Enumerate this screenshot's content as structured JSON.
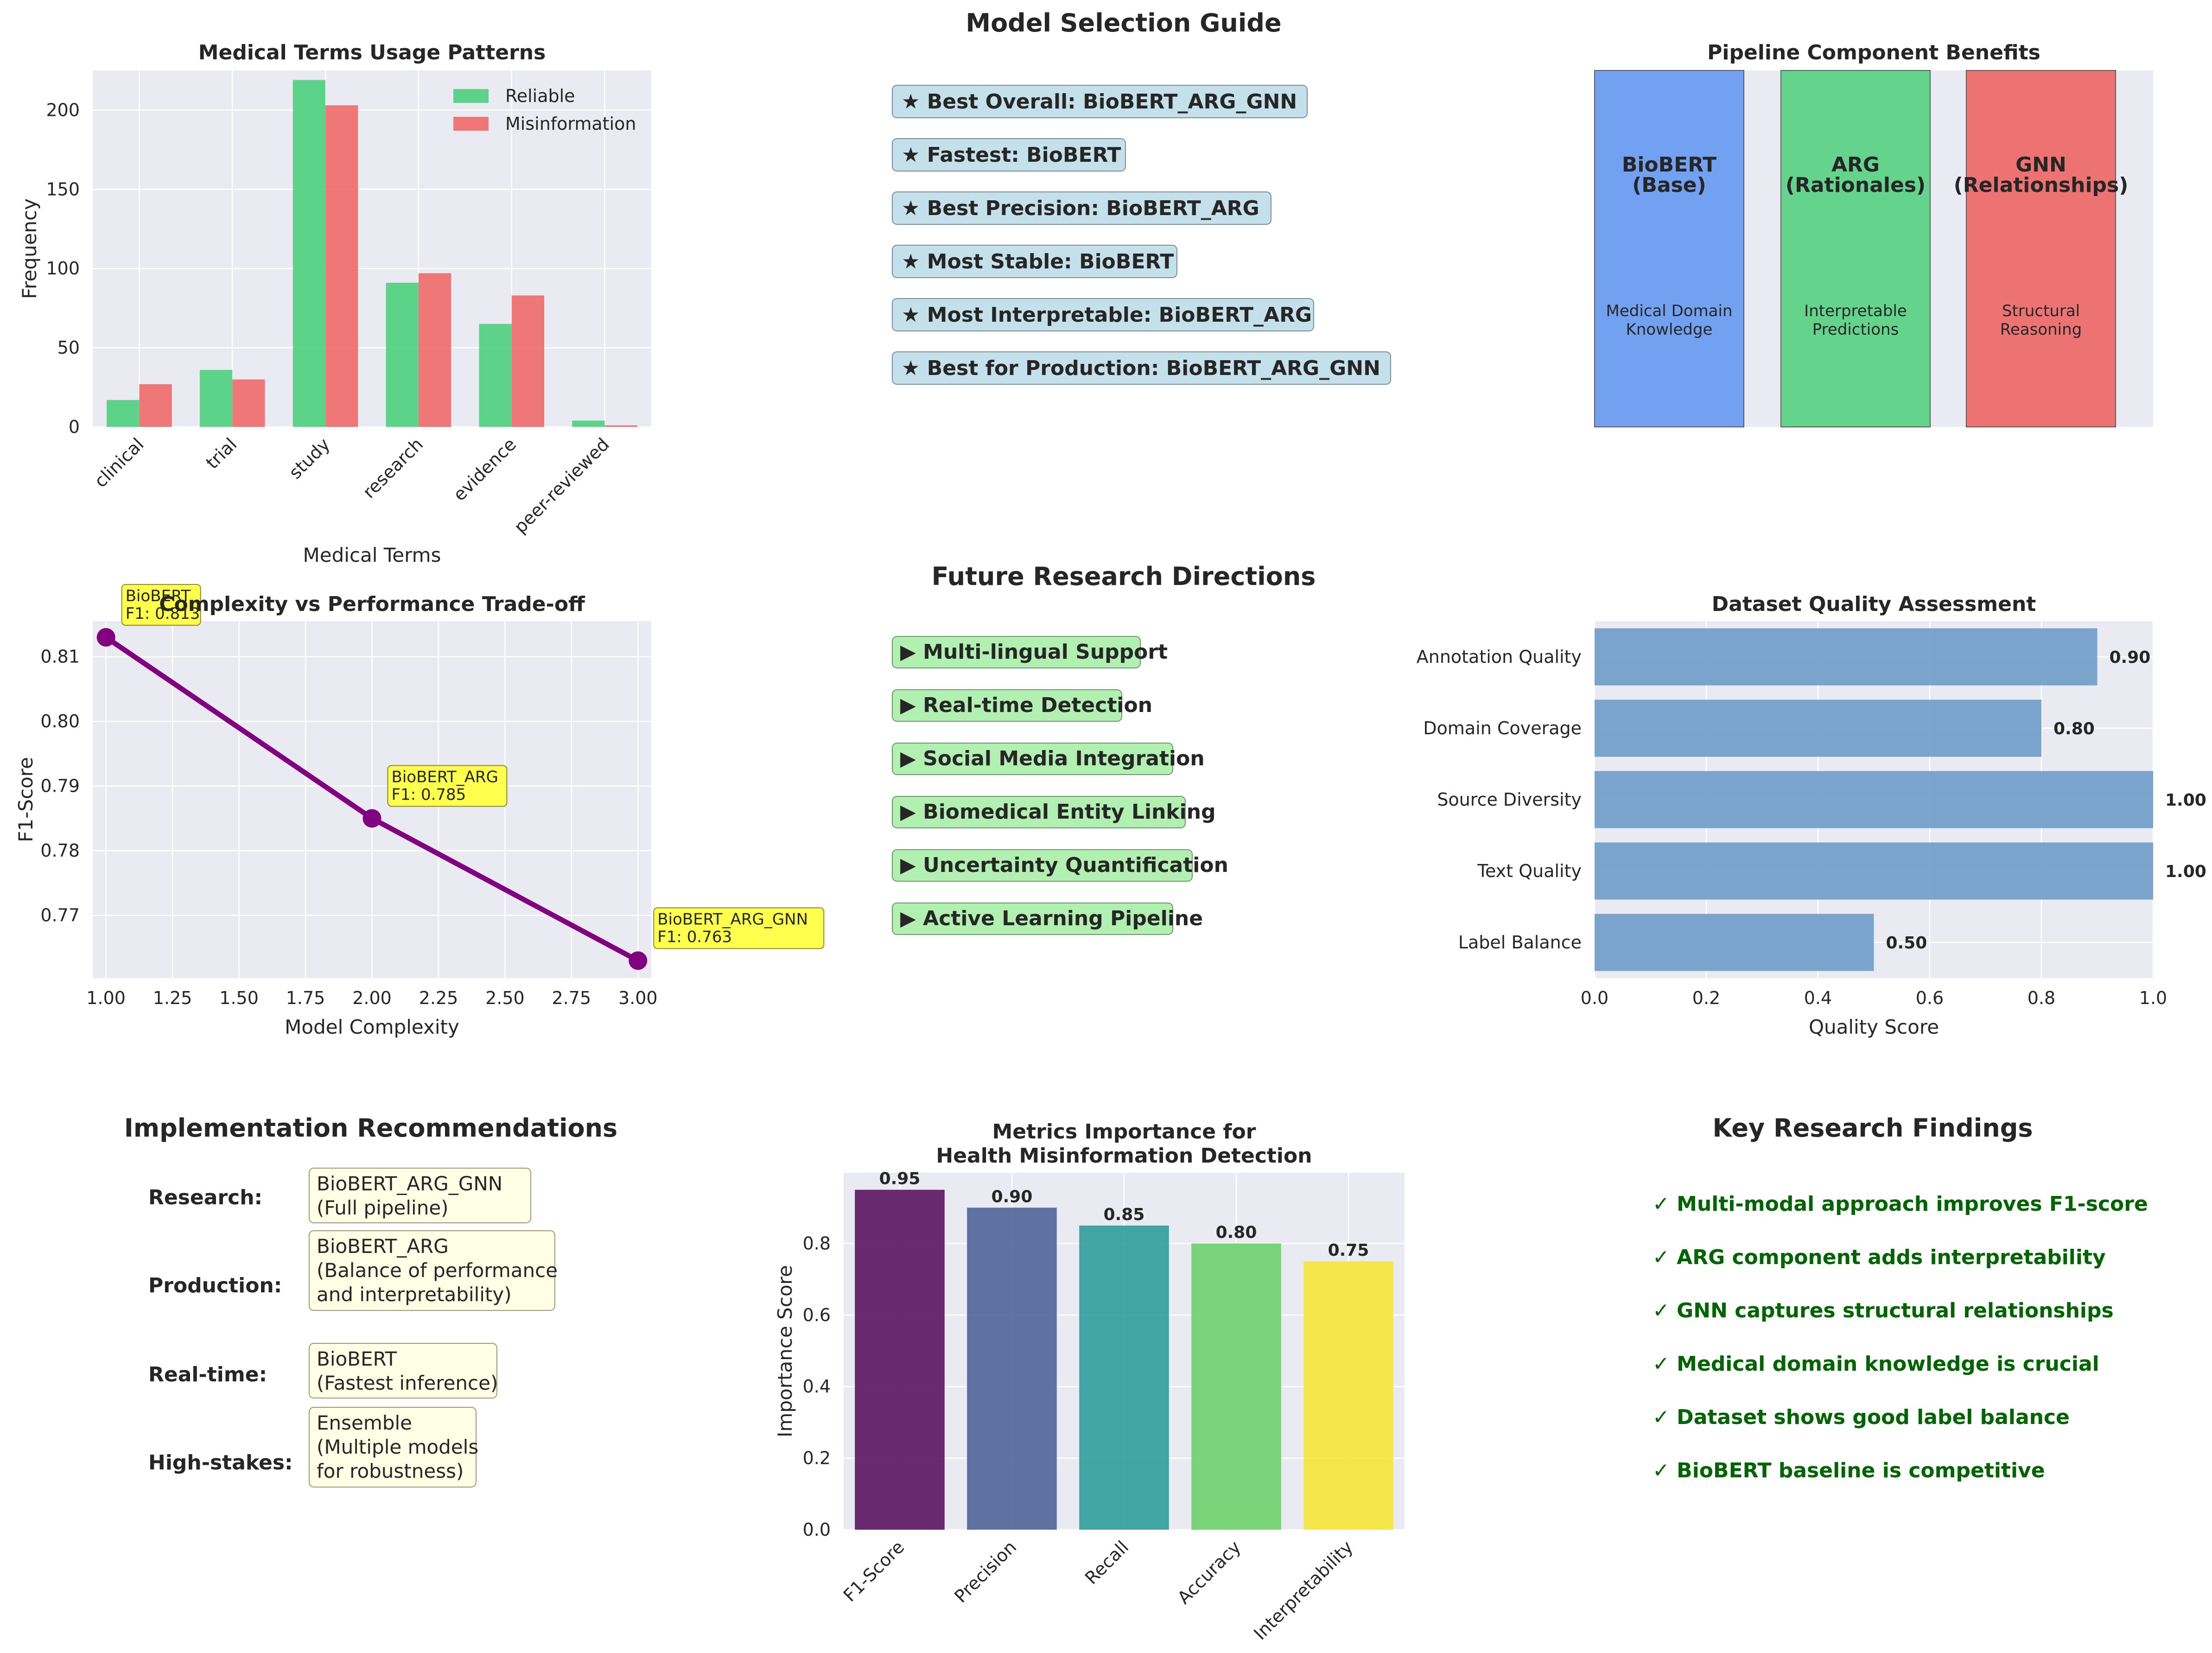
{
  "chart_data": [
    {
      "type": "bar",
      "title": "Medical Terms Usage Patterns",
      "xlabel": "Medical Terms",
      "ylabel": "Frequency",
      "categories": [
        "clinical",
        "trial",
        "study",
        "research",
        "evidence",
        "peer-reviewed"
      ],
      "series": [
        {
          "name": "Reliable",
          "values": [
            17,
            36,
            219,
            91,
            65,
            4
          ],
          "color": "#4cd07d"
        },
        {
          "name": "Misinformation",
          "values": [
            27,
            30,
            203,
            97,
            83,
            1
          ],
          "color": "#f06a6a"
        }
      ],
      "ylim": [
        0,
        225
      ],
      "yticks": [
        "0",
        "50",
        "100",
        "150",
        "200"
      ],
      "grid": true,
      "legend": "top-right"
    },
    {
      "type": "table",
      "title": "Model Selection Guide",
      "items": [
        "★ Best Overall: BioBERT_ARG_GNN",
        "★ Fastest: BioBERT",
        "★ Best Precision: BioBERT_ARG",
        "★ Most Stable: BioBERT",
        "★ Most Interpretable: BioBERT_ARG",
        "★ Best for Production: BioBERT_ARG_GNN"
      ],
      "box_color": "#c3e0eb"
    },
    {
      "type": "bar",
      "title": "Pipeline Component Benefits",
      "components": [
        {
          "name": "BioBERT\n(Base)",
          "benefit": "Medical Domain\nKnowledge",
          "color": "#6b9ef0"
        },
        {
          "name": "ARG\n(Rationales)",
          "benefit": "Interpretable\nPredictions",
          "color": "#5dd287"
        },
        {
          "name": "GNN\n(Relationships)",
          "benefit": "Structural\nReasoning",
          "color": "#ee6d6d"
        }
      ]
    },
    {
      "type": "line",
      "title": "Complexity vs Performance Trade-off",
      "xlabel": "Model Complexity",
      "ylabel": "F1-Score",
      "x": [
        1,
        2,
        3
      ],
      "y": [
        0.813,
        0.785,
        0.763
      ],
      "point_labels": [
        "BioBERT\nF1: 0.813",
        "BioBERT_ARG\nF1: 0.785",
        "BioBERT_ARG_GNN\nF1: 0.763"
      ],
      "xlim": [
        0.95,
        3.05
      ],
      "ylim": [
        0.7603,
        0.8155
      ],
      "xticks": [
        "1.00",
        "1.25",
        "1.50",
        "1.75",
        "2.00",
        "2.25",
        "2.50",
        "2.75",
        "3.00"
      ],
      "yticks": [
        "0.77",
        "0.78",
        "0.79",
        "0.80",
        "0.81"
      ],
      "color": "#800080",
      "grid": true
    },
    {
      "type": "table",
      "title": "Future Research Directions",
      "items": [
        "▶ Multi-lingual Support",
        "▶ Real-time Detection",
        "▶ Social Media Integration",
        "▶ Biomedical Entity Linking",
        "▶ Uncertainty Quantification",
        "▶ Active Learning Pipeline"
      ],
      "box_color": "#b2f0b2"
    },
    {
      "type": "bar",
      "orientation": "horizontal",
      "title": "Dataset Quality Assessment",
      "xlabel": "Quality Score",
      "categories": [
        "Annotation Quality",
        "Domain Coverage",
        "Source Diversity",
        "Text Quality",
        "Label Balance"
      ],
      "values": [
        0.9,
        0.8,
        1.0,
        1.0,
        0.5
      ],
      "value_labels": [
        "0.90",
        "0.80",
        "1.00",
        "1.00",
        "0.50"
      ],
      "xlim": [
        0,
        1.0
      ],
      "xticks": [
        "0.0",
        "0.2",
        "0.4",
        "0.6",
        "0.8",
        "1.0"
      ],
      "color": "#6e9cc8",
      "grid": true
    },
    {
      "type": "table",
      "title": "Implementation Recommendations",
      "rows": [
        {
          "label": "Research:",
          "value": "BioBERT_ARG_GNN\n(Full pipeline)"
        },
        {
          "label": "Production:",
          "value": "BioBERT_ARG\n(Balance of performance\nand interpretability)"
        },
        {
          "label": "Real-time:",
          "value": "BioBERT\n(Fastest inference)"
        },
        {
          "label": "High-stakes:",
          "value": "Ensemble\n(Multiple models\nfor robustness)"
        }
      ],
      "box_color": "#ffffe6"
    },
    {
      "type": "bar",
      "title": "Metrics Importance for\nHealth Misinformation Detection",
      "ylabel": "Importance Score",
      "categories": [
        "F1-Score",
        "Precision",
        "Recall",
        "Accuracy",
        "Interpretability"
      ],
      "values": [
        0.95,
        0.9,
        0.85,
        0.8,
        0.75
      ],
      "value_labels": [
        "0.95",
        "0.90",
        "0.85",
        "0.80",
        "0.75"
      ],
      "colors": [
        "#5a1460",
        "#506498",
        "#2f9e9a",
        "#6cd06c",
        "#f7e53c"
      ],
      "ylim": [
        0,
        0.9975
      ],
      "yticks": [
        "0.0",
        "0.2",
        "0.4",
        "0.6",
        "0.8"
      ],
      "grid": true
    },
    {
      "type": "table",
      "title": "Key Research Findings",
      "items": [
        "✓ Multi-modal approach improves F1-score",
        "✓ ARG component adds interpretability",
        "✓ GNN captures structural relationships",
        "✓ Medical domain knowledge is crucial",
        "✓ Dataset shows good label balance",
        "✓ BioBERT baseline is competitive"
      ],
      "text_color": "#006400"
    }
  ]
}
